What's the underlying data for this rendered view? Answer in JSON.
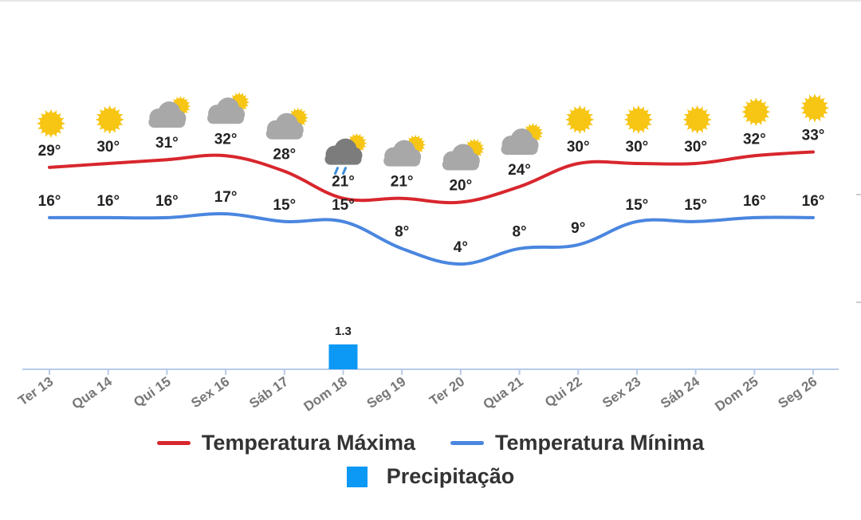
{
  "chart_data": {
    "type": "line",
    "categories": [
      "Ter 13",
      "Qua 14",
      "Qui 15",
      "Sex 16",
      "Sáb 17",
      "Dom 18",
      "Seg 19",
      "Ter 20",
      "Qua 21",
      "Qui 22",
      "Sex 23",
      "Sáb 24",
      "Dom 25",
      "Seg 26"
    ],
    "icons": [
      "sun-icon",
      "sun-icon",
      "partly-cloudy-icon",
      "partly-cloudy-icon",
      "partly-cloudy-icon",
      "rain-icon",
      "partly-cloudy-icon",
      "partly-cloudy-icon",
      "partly-cloudy-icon",
      "sun-icon",
      "sun-icon",
      "sun-icon",
      "sun-icon",
      "sun-icon"
    ],
    "series": [
      {
        "name": "Temperatura Máxima",
        "color": "#d8262d",
        "values": [
          29,
          30,
          31,
          32,
          28,
          21,
          21,
          20,
          24,
          30,
          30,
          30,
          32,
          33
        ],
        "labels": [
          "29°",
          "30°",
          "31°",
          "32°",
          "28°",
          "21°",
          "21°",
          "20°",
          "24°",
          "30°",
          "30°",
          "30°",
          "32°",
          "33°"
        ]
      },
      {
        "name": "Temperatura Mínima",
        "color": "#4a86df",
        "values": [
          16,
          16,
          16,
          17,
          15,
          15,
          8,
          4,
          8,
          9,
          15,
          15,
          16,
          16
        ],
        "labels": [
          "16°",
          "16°",
          "16°",
          "17°",
          "15°",
          "15°",
          "8°",
          "4°",
          "8°",
          "9°",
          "15°",
          "15°",
          "16°",
          "16°"
        ]
      },
      {
        "name": "Precipitação",
        "type": "bar",
        "color": "#0c98f5",
        "values": [
          0,
          0,
          0,
          0,
          0,
          1.3,
          0,
          0,
          0,
          0,
          0,
          0,
          0,
          0
        ],
        "labels": [
          "",
          "",
          "",
          "",
          "",
          "1.3",
          "",
          "",
          "",
          "",
          "",
          "",
          "",
          ""
        ]
      }
    ],
    "legend": {
      "position": "bottom"
    },
    "grid": false
  },
  "colors": {
    "axis": "#b8cbe8",
    "tick_text": "#777777",
    "sun": "#f7c513",
    "cloud": "#a8a8a8",
    "dark_cloud": "#7c7c7c",
    "rain": "#3b8ed8"
  }
}
